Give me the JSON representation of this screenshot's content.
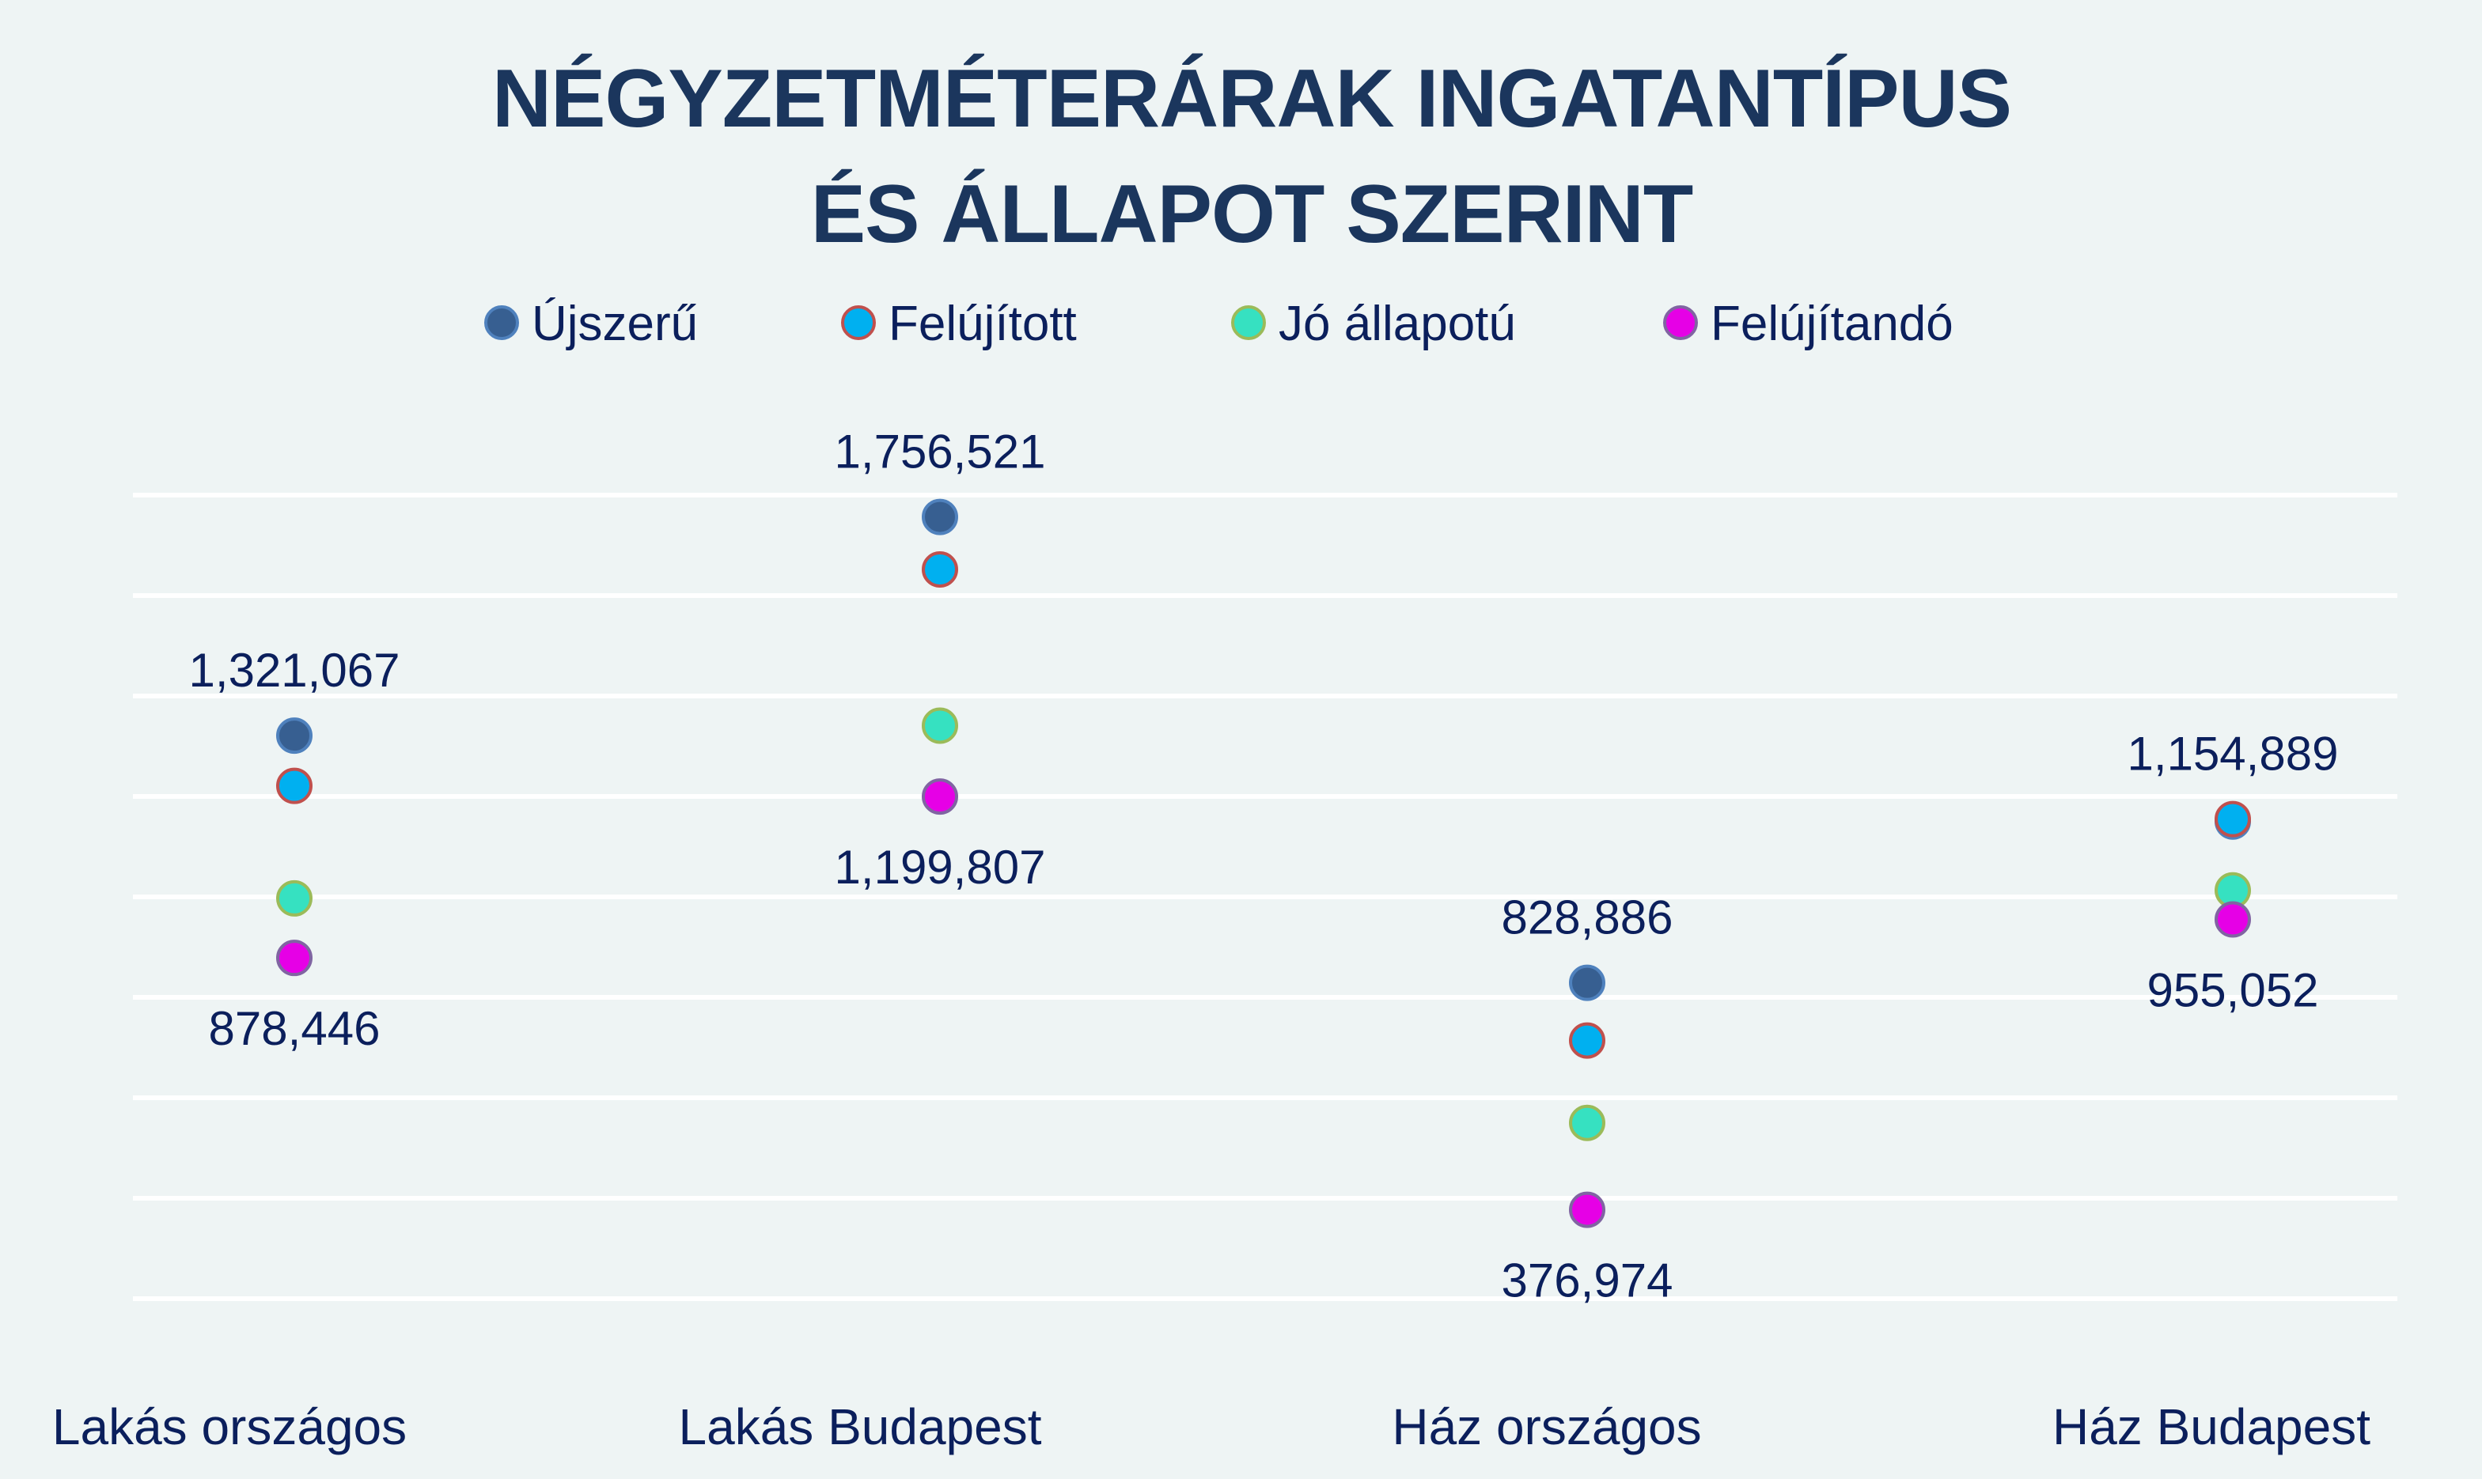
{
  "chart_data": {
    "type": "scatter",
    "title_lines": [
      "NÉGYZETMÉTERÁRAK INGATANTÍPUS",
      "ÉS ÁLLAPOT SZERINT"
    ],
    "xlabel": "",
    "ylabel": "",
    "categories": [
      "Lakás országos",
      "Lakás Budapest",
      "Ház országos",
      "Ház Budapest"
    ],
    "ylim": [
      200000,
      1800000
    ],
    "ytick_step": 200000,
    "grid": true,
    "y_axis_labels_shown": false,
    "legend_position": "top-center",
    "series": [
      {
        "name": "Újszerű",
        "color": "#375F91",
        "edge": "#4F81BD",
        "values": [
          1321067,
          1756521,
          828886,
          1150000
        ]
      },
      {
        "name": "Felújított",
        "color": "#00B0F0",
        "edge": "#C0504D",
        "values": [
          1221000,
          1652000,
          714000,
          1154889
        ]
      },
      {
        "name": "Jó állapotú",
        "color": "#36E1C1",
        "edge": "#9BBB59",
        "values": [
          997000,
          1341000,
          550000,
          1013000
        ]
      },
      {
        "name": "Felújítandó",
        "color": "#E600E6",
        "edge": "#8064A2",
        "values": [
          878446,
          1199807,
          376974,
          955052
        ]
      }
    ],
    "annotations": [
      {
        "category": "Lakás országos",
        "text": "1,321,067",
        "position": "above"
      },
      {
        "category": "Lakás országos",
        "text": "878,446",
        "position": "below"
      },
      {
        "category": "Lakás Budapest",
        "text": "1,756,521",
        "position": "above"
      },
      {
        "category": "Lakás Budapest",
        "text": "1,199,807",
        "position": "below"
      },
      {
        "category": "Ház országos",
        "text": "828,886",
        "position": "above"
      },
      {
        "category": "Ház országos",
        "text": "376,974",
        "position": "below"
      },
      {
        "category": "Ház Budapest",
        "text": "1,154,889",
        "position": "above"
      },
      {
        "category": "Ház Budapest",
        "text": "955,052",
        "position": "below"
      }
    ]
  }
}
